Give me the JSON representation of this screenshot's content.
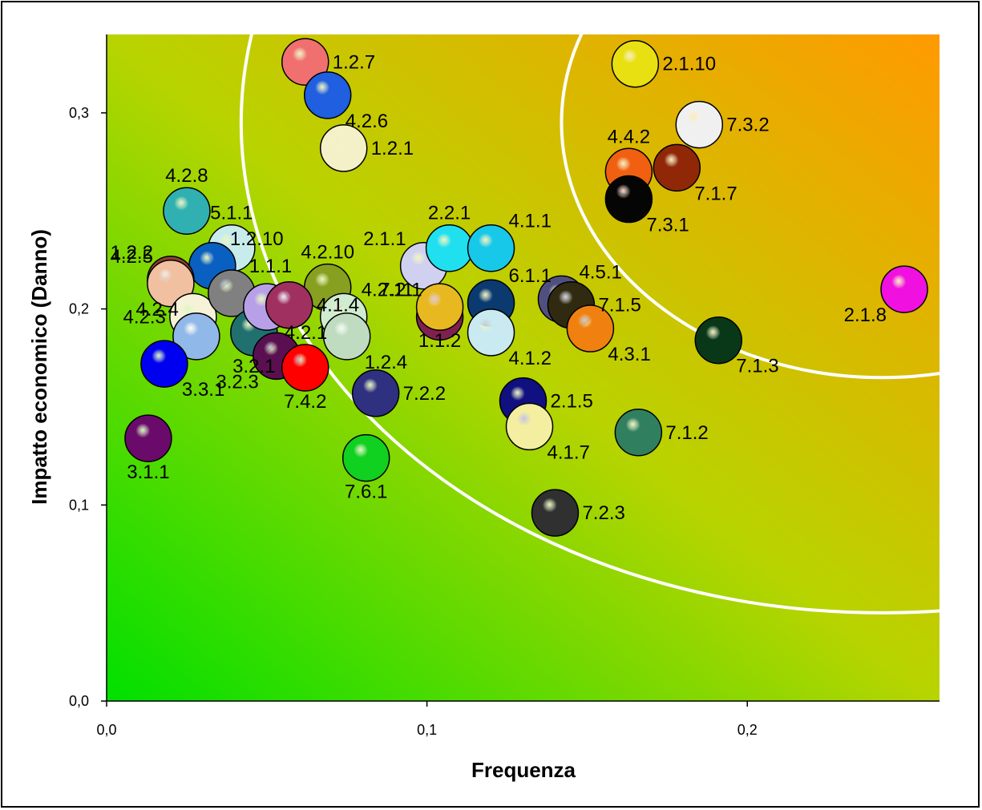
{
  "chart_data": {
    "type": "scatter",
    "title": "",
    "xlabel": "Frequenza",
    "ylabel": "Impatto economico (Danno)",
    "xlim": [
      0,
      0.26
    ],
    "ylim": [
      0,
      0.34
    ],
    "x_ticks": [
      0.0,
      0.1,
      0.2
    ],
    "x_tick_labels": [
      "0,0",
      "0,1",
      "0,2"
    ],
    "y_ticks": [
      0.0,
      0.1,
      0.2,
      0.3
    ],
    "y_tick_labels": [
      "0,0",
      "0,1",
      "0,2",
      "0,3"
    ],
    "grid": false,
    "legend": "none",
    "background_gradient": {
      "from": "#00e000",
      "to": "#ff9a00",
      "direction": "bottom-left to top-right"
    },
    "boundary_curves": [
      {
        "center": [
          0.242,
          0.295
        ],
        "radius_x": 0.2,
        "radius_y": 0.25,
        "color": "#ffffff"
      },
      {
        "center": [
          0.242,
          0.295
        ],
        "radius_x": 0.1,
        "radius_y": 0.13,
        "color": "#ffffff"
      }
    ],
    "points": [
      {
        "label": "1.2.7",
        "x": 0.062,
        "y": 0.326,
        "color": "#f07070",
        "label_pos": "right"
      },
      {
        "label": "4.2.6",
        "x": 0.069,
        "y": 0.309,
        "color": "#1f5fe0",
        "label_pos": "below-right"
      },
      {
        "label": "1.2.1",
        "x": 0.074,
        "y": 0.282,
        "color": "#f4f0c8",
        "label_pos": "right"
      },
      {
        "label": "4.2.8",
        "x": 0.025,
        "y": 0.25,
        "color": "#30b0b0",
        "label_pos": "above"
      },
      {
        "label": "5.1.1",
        "x": 0.039,
        "y": 0.231,
        "color": "#c8ecec",
        "label_pos": "above"
      },
      {
        "label": "1.2.10",
        "x": 0.033,
        "y": 0.222,
        "color": "#0a60c0",
        "label_pos": "above-right"
      },
      {
        "label": "1.2.2",
        "x": 0.02,
        "y": 0.215,
        "color": "#904030",
        "label_pos": "above-left"
      },
      {
        "label": "4.2.5",
        "x": 0.02,
        "y": 0.213,
        "color": "#f0c0a0",
        "label_pos": "above-left"
      },
      {
        "label": "4.2.3",
        "x": 0.027,
        "y": 0.196,
        "color": "#f6f2d8",
        "label_pos": "left"
      },
      {
        "label": "1.1.1",
        "x": 0.039,
        "y": 0.208,
        "color": "#808080",
        "label_pos": "above-right"
      },
      {
        "label": "4.2.4",
        "x": 0.028,
        "y": 0.186,
        "color": "#90b8e8",
        "label_pos": "above-left"
      },
      {
        "label": "3.2.1",
        "x": 0.046,
        "y": 0.188,
        "color": "#207070",
        "label_pos": "below"
      },
      {
        "label": "3.2.3",
        "x": 0.053,
        "y": 0.176,
        "color": "#5a1050",
        "label_pos": "below-left"
      },
      {
        "label": "3.3.1",
        "x": 0.018,
        "y": 0.172,
        "color": "#0000f0",
        "label_pos": "below-right"
      },
      {
        "label": "3.1.1",
        "x": 0.013,
        "y": 0.134,
        "color": "#6a0a6a",
        "label_pos": "below"
      },
      {
        "label": "4.2.1",
        "x": 0.05,
        "y": 0.201,
        "color": "#b8a0e8",
        "label_pos": "below-right"
      },
      {
        "label": "4.2.10",
        "x": 0.069,
        "y": 0.211,
        "color": "#88a020",
        "label_pos": "above"
      },
      {
        "label": "4.2.11",
        "x": 0.074,
        "y": 0.196,
        "color": "#d0ecd0",
        "label_pos": "above-right"
      },
      {
        "label": "4.1.4",
        "x": 0.057,
        "y": 0.202,
        "color": "#a03060",
        "label_pos": "right"
      },
      {
        "label": "7.4.2",
        "x": 0.062,
        "y": 0.17,
        "color": "#ff0000",
        "label_pos": "below"
      },
      {
        "label": "1.2.4",
        "x": 0.075,
        "y": 0.186,
        "color": "#c0dcc0",
        "label_pos": "below-right"
      },
      {
        "label": "7.2.2",
        "x": 0.084,
        "y": 0.157,
        "color": "#303080",
        "label_pos": "right"
      },
      {
        "label": "7.6.1",
        "x": 0.081,
        "y": 0.124,
        "color": "#10d020",
        "label_pos": "below"
      },
      {
        "label": "2.1.1",
        "x": 0.099,
        "y": 0.222,
        "color": "#d0d0f0",
        "label_pos": "above-left"
      },
      {
        "label": "2.2.1",
        "x": 0.107,
        "y": 0.231,
        "color": "#20e0f0",
        "label_pos": "above"
      },
      {
        "label": "7.2.1",
        "x": 0.104,
        "y": 0.196,
        "color": "#802050",
        "label_pos": "above-left"
      },
      {
        "label": "1.1.2",
        "x": 0.104,
        "y": 0.201,
        "color": "#e8b820",
        "label_pos": "below"
      },
      {
        "label": "4.1.1",
        "x": 0.12,
        "y": 0.231,
        "color": "#18c8e8",
        "label_pos": "above-right"
      },
      {
        "label": "6.1.1",
        "x": 0.12,
        "y": 0.203,
        "color": "#0a3a70",
        "label_pos": "above-right"
      },
      {
        "label": "4.1.2",
        "x": 0.12,
        "y": 0.188,
        "color": "#c8eaf0",
        "label_pos": "below-right"
      },
      {
        "label": "2.1.5",
        "x": 0.13,
        "y": 0.153,
        "color": "#101080",
        "label_pos": "right"
      },
      {
        "label": "4.1.7",
        "x": 0.132,
        "y": 0.14,
        "color": "#f4eea0",
        "label_pos": "below-right"
      },
      {
        "label": "7.2.3",
        "x": 0.14,
        "y": 0.096,
        "color": "#303030",
        "label_pos": "right"
      },
      {
        "label": "4.5.1",
        "x": 0.142,
        "y": 0.205,
        "color": "#505080",
        "label_pos": "above-right"
      },
      {
        "label": "7.1.5",
        "x": 0.145,
        "y": 0.202,
        "color": "#302a10",
        "label_pos": "right"
      },
      {
        "label": "4.3.1",
        "x": 0.151,
        "y": 0.19,
        "color": "#f08010",
        "label_pos": "below-right"
      },
      {
        "label": "4.4.2",
        "x": 0.163,
        "y": 0.27,
        "color": "#f06010",
        "label_pos": "above"
      },
      {
        "label": "7.3.1",
        "x": 0.163,
        "y": 0.256,
        "color": "#050505",
        "label_pos": "below-right"
      },
      {
        "label": "7.1.7",
        "x": 0.178,
        "y": 0.272,
        "color": "#902808",
        "label_pos": "below-right"
      },
      {
        "label": "2.1.10",
        "x": 0.165,
        "y": 0.325,
        "color": "#e8e010",
        "label_pos": "right"
      },
      {
        "label": "7.3.2",
        "x": 0.185,
        "y": 0.294,
        "color": "#f0f0f0",
        "label_pos": "right"
      },
      {
        "label": "7.1.3",
        "x": 0.191,
        "y": 0.184,
        "color": "#083818",
        "label_pos": "below-right"
      },
      {
        "label": "7.1.2",
        "x": 0.166,
        "y": 0.137,
        "color": "#308060",
        "label_pos": "right"
      },
      {
        "label": "2.1.8",
        "x": 0.249,
        "y": 0.21,
        "color": "#f010e0",
        "label_pos": "below-left"
      }
    ]
  }
}
